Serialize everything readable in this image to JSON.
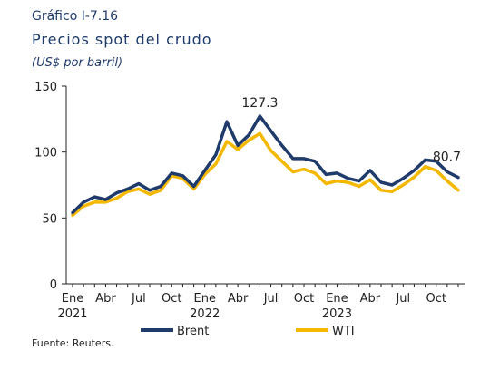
{
  "header": {
    "figure_number": "Gráfico I-7.16",
    "title": "Precios spot del crudo",
    "unit": "(US$ por barril)"
  },
  "source": "Fuente: Reuters.",
  "colors": {
    "brent": "#1f3b6b",
    "wti": "#f5b800",
    "axis": "#222222"
  },
  "chart_data": {
    "type": "line",
    "title": "Precios spot del crudo",
    "ylabel": "(US$ por barril)",
    "ylim": [
      0,
      150
    ],
    "yticks": [
      0,
      50,
      100,
      150
    ],
    "grid": false,
    "legend_position": "bottom",
    "x": [
      "2021-01",
      "2021-02",
      "2021-03",
      "2021-04",
      "2021-05",
      "2021-06",
      "2021-07",
      "2021-08",
      "2021-09",
      "2021-10",
      "2021-11",
      "2021-12",
      "2022-01",
      "2022-02",
      "2022-03",
      "2022-04",
      "2022-05",
      "2022-06",
      "2022-07",
      "2022-08",
      "2022-09",
      "2022-10",
      "2022-11",
      "2022-12",
      "2023-01",
      "2023-02",
      "2023-03",
      "2023-04",
      "2023-05",
      "2023-06",
      "2023-07",
      "2023-08",
      "2023-09",
      "2023-10",
      "2023-11",
      "2023-12"
    ],
    "x_tick_labels": [
      {
        "month": "2021-01",
        "label": "Ene",
        "year": "2021"
      },
      {
        "month": "2021-04",
        "label": "Abr",
        "year": ""
      },
      {
        "month": "2021-07",
        "label": "Jul",
        "year": ""
      },
      {
        "month": "2021-10",
        "label": "Oct",
        "year": ""
      },
      {
        "month": "2022-01",
        "label": "Ene",
        "year": "2022"
      },
      {
        "month": "2022-04",
        "label": "Abr",
        "year": ""
      },
      {
        "month": "2022-07",
        "label": "Jul",
        "year": ""
      },
      {
        "month": "2022-10",
        "label": "Oct",
        "year": ""
      },
      {
        "month": "2023-01",
        "label": "Ene",
        "year": "2023"
      },
      {
        "month": "2023-04",
        "label": "Abr",
        "year": ""
      },
      {
        "month": "2023-07",
        "label": "Jul",
        "year": ""
      },
      {
        "month": "2023-10",
        "label": "Oct",
        "year": ""
      }
    ],
    "series": [
      {
        "name": "Brent",
        "values": [
          54,
          62,
          66,
          64,
          69,
          72,
          76,
          71,
          74,
          84,
          82,
          74,
          86,
          98,
          123,
          105,
          113,
          127.3,
          116,
          105,
          95,
          95,
          93,
          83,
          84,
          80,
          78,
          86,
          77,
          75,
          80,
          86,
          94,
          93,
          85,
          80.7
        ]
      },
      {
        "name": "WTI",
        "values": [
          52,
          59,
          62,
          62,
          65,
          70,
          72,
          68,
          71,
          82,
          80,
          72,
          83,
          91,
          108,
          102,
          109,
          114,
          101,
          93,
          85,
          87,
          84,
          76,
          78,
          77,
          74,
          79,
          71,
          70,
          75,
          81,
          89,
          86,
          78,
          71
        ]
      }
    ],
    "data_labels": [
      {
        "series": "Brent",
        "month": "2022-06",
        "text": "127.3"
      },
      {
        "series": "Brent",
        "month": "2023-12",
        "text": "80.7"
      }
    ]
  }
}
